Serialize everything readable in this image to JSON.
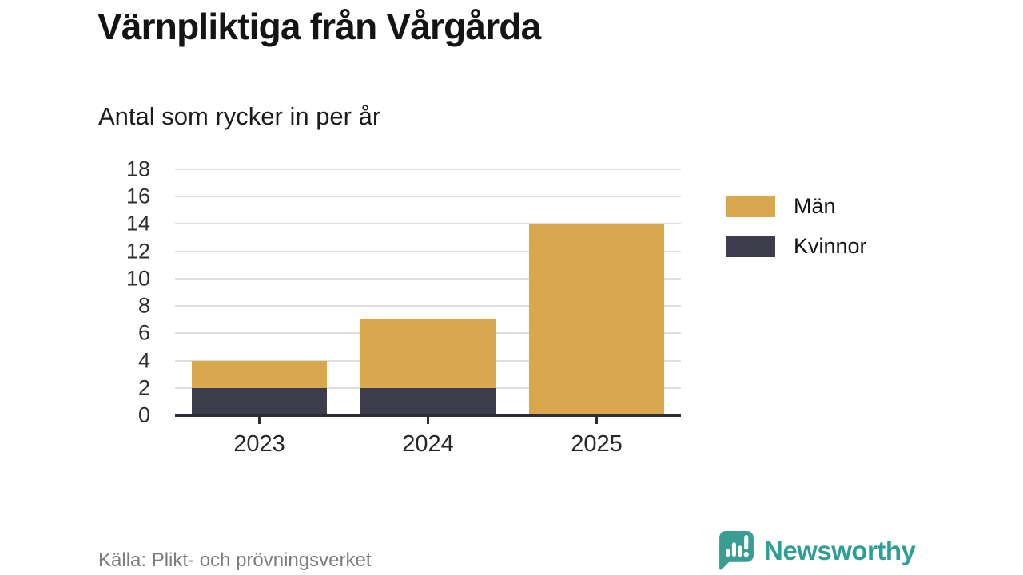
{
  "header": {
    "title": "Värnpliktiga från Vårgårda",
    "subtitle": "Antal som rycker in per år"
  },
  "chart_data": {
    "type": "bar",
    "stacked": true,
    "title": "Värnpliktiga från Vårgårda",
    "subtitle": "Antal som rycker in per år",
    "categories": [
      "2023",
      "2024",
      "2025"
    ],
    "series": [
      {
        "name": "Män",
        "color": "#d9a74d",
        "values": [
          2,
          5,
          14
        ]
      },
      {
        "name": "Kvinnor",
        "color": "#3d3d4b",
        "values": [
          2,
          2,
          0
        ]
      }
    ],
    "totals": [
      4,
      7,
      14
    ],
    "xlabel": "",
    "ylabel": "",
    "ylim": [
      0,
      18
    ],
    "yticks": [
      0,
      2,
      4,
      6,
      8,
      10,
      12,
      14,
      16,
      18
    ],
    "grid": true,
    "legend_position": "right"
  },
  "legend": {
    "items": [
      {
        "label": "Män",
        "color": "#d9a74d"
      },
      {
        "label": "Kvinnor",
        "color": "#3d3d4b"
      }
    ]
  },
  "footer": {
    "source": "Källa: Plikt- och prövningsverket",
    "brand": "Newsworthy"
  },
  "colors": {
    "men": "#d9a74d",
    "women": "#3d3d4b",
    "brand_teal": "#2f9e94",
    "gridline": "#dedede",
    "axis": "#2d2d36"
  },
  "icons": {
    "brand": "newsworthy-bubble-bar-chart-icon"
  }
}
